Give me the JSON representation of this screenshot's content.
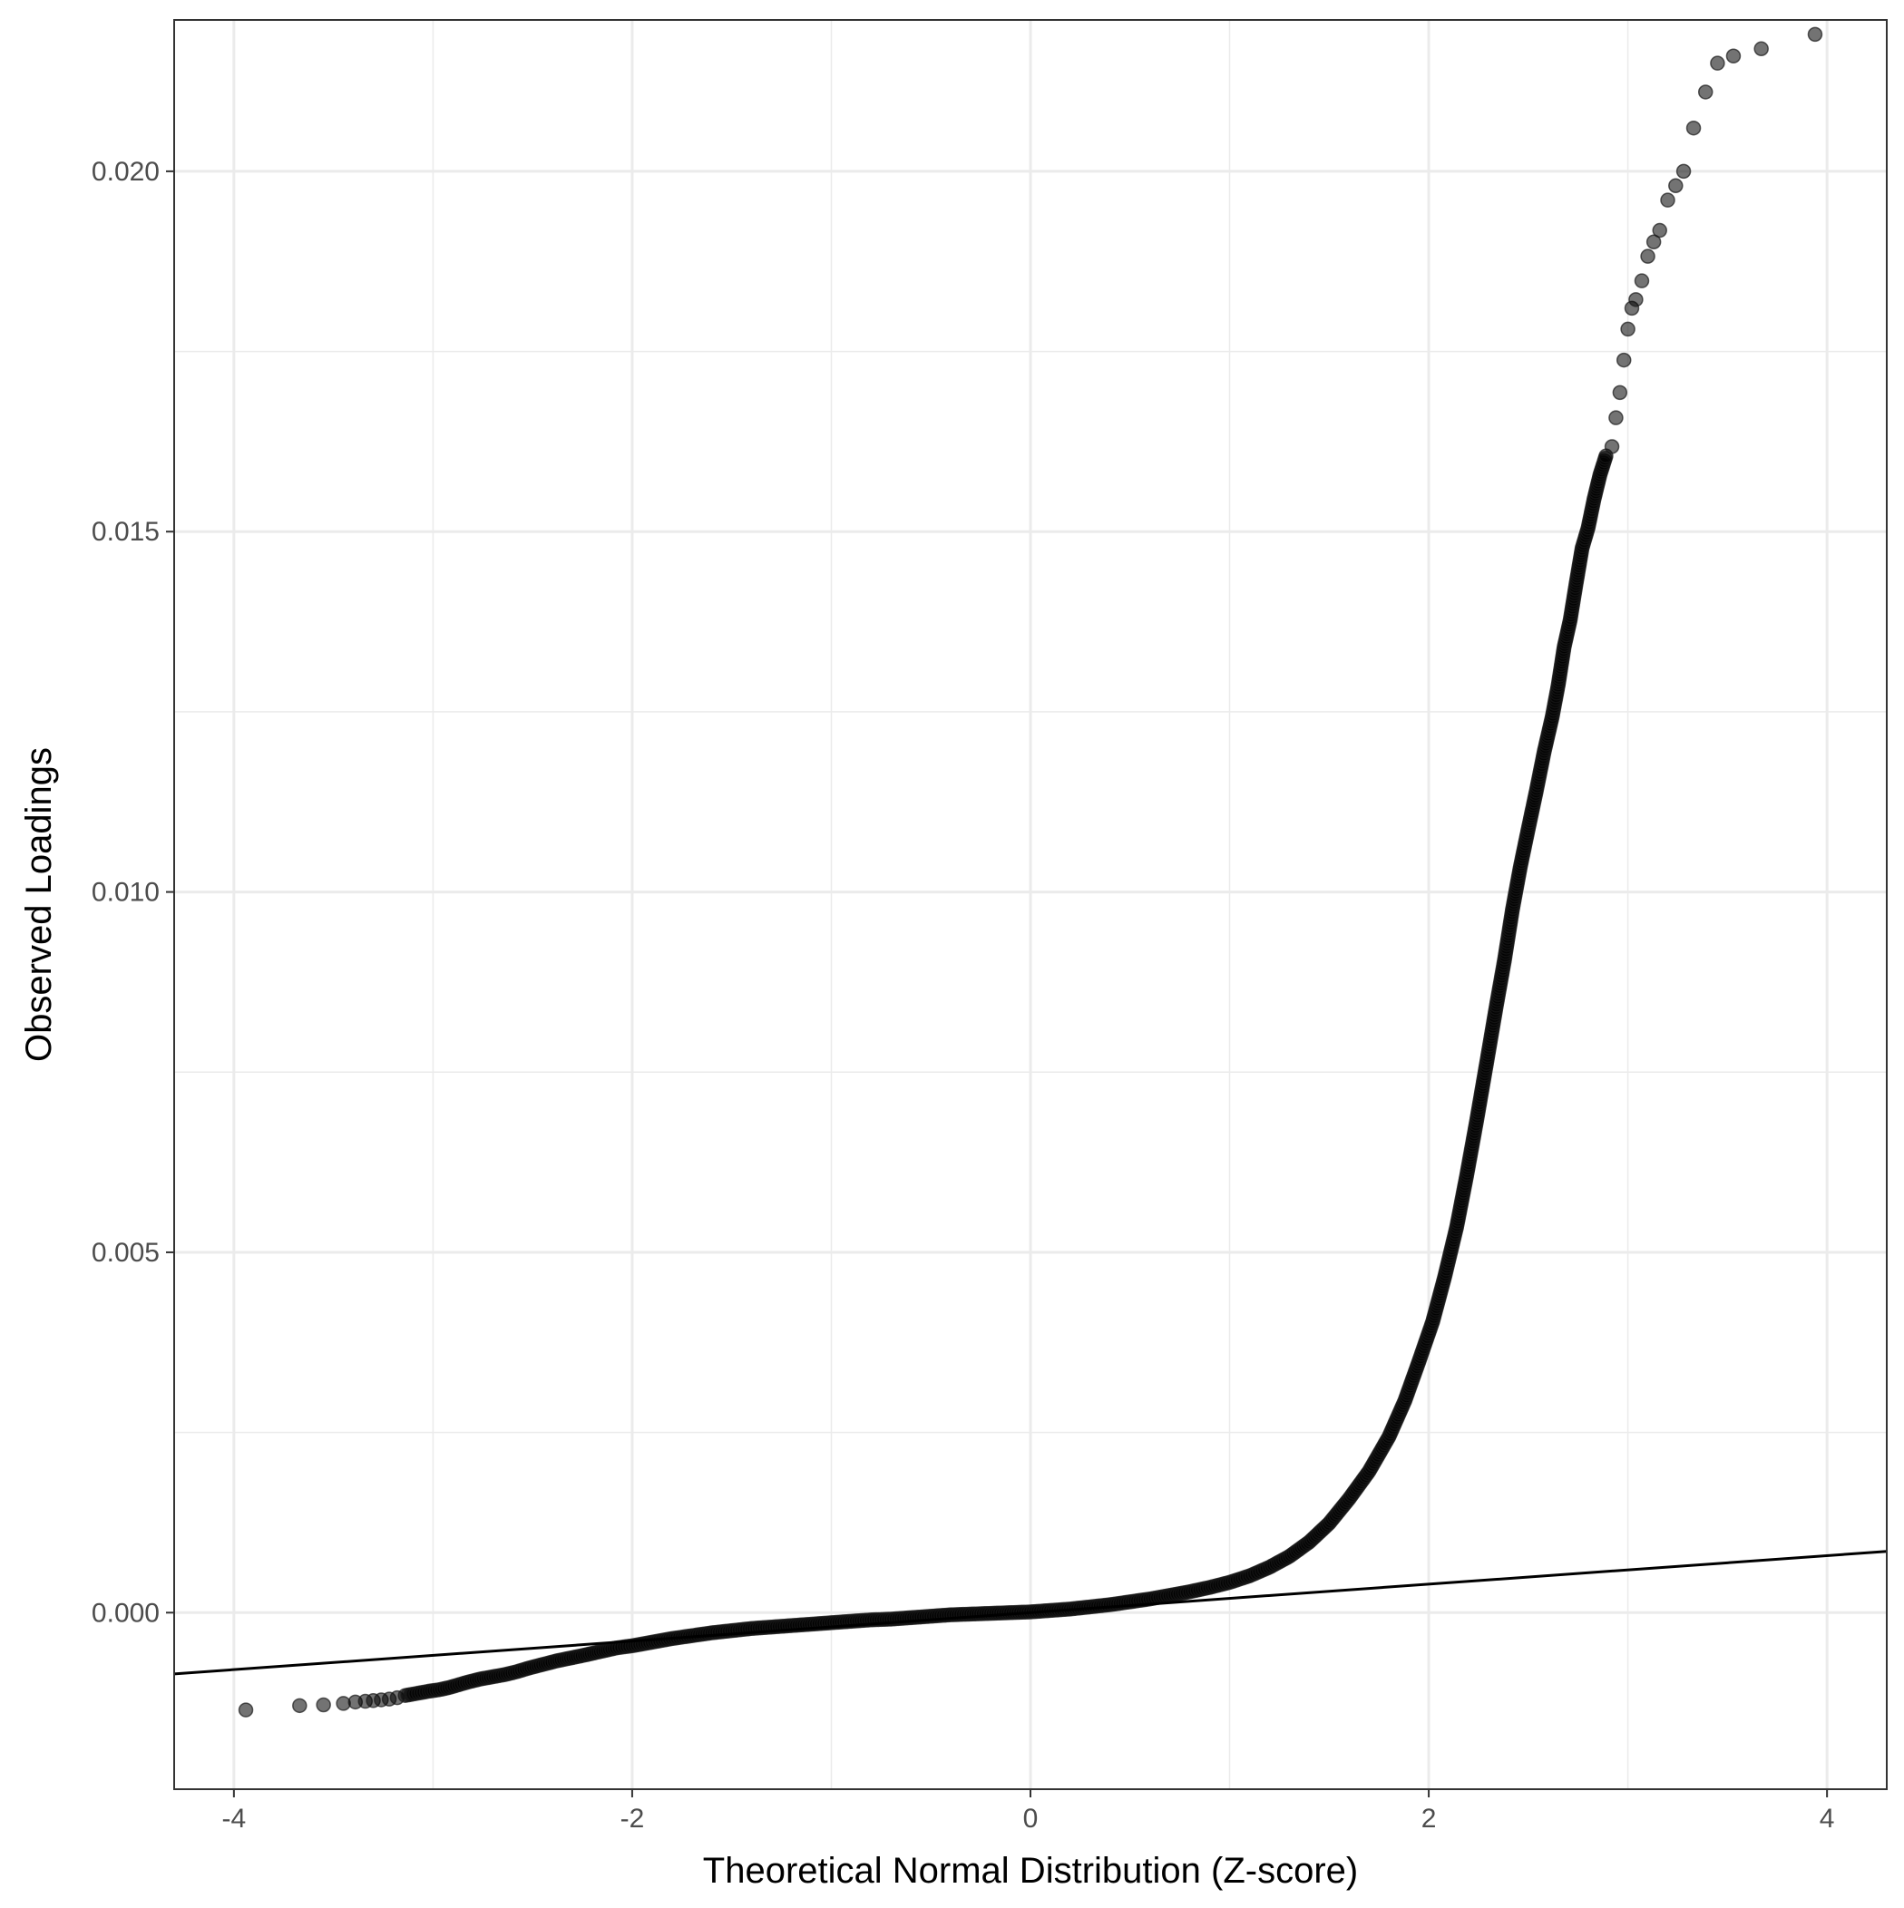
{
  "chart_data": {
    "type": "scatter",
    "title": "",
    "xlabel": "Theoretical Normal Distribution (Z-score)",
    "ylabel": "Observed Loadings",
    "xlim": [
      -4.3,
      4.3
    ],
    "ylim": [
      -0.00245,
      0.0221
    ],
    "x_ticks": [
      -4,
      -2,
      0,
      2,
      4
    ],
    "x_tick_labels": [
      "-4",
      "-2",
      "0",
      "2",
      "4"
    ],
    "y_ticks": [
      0.0,
      0.005,
      0.01,
      0.015,
      0.02
    ],
    "y_tick_labels": [
      "0.000",
      "0.005",
      "0.010",
      "0.015",
      "0.020"
    ],
    "grid": true,
    "legend": "none",
    "colors": {
      "points": "#000000",
      "reference_line": "#000000",
      "grid": "#ebebeb",
      "panel_border": "#333333"
    },
    "reference_line": {
      "x": [
        -4.3,
        4.3
      ],
      "y": [
        -0.00085,
        0.00085
      ]
    },
    "series": [
      {
        "x": [
          -3.94,
          -3.67,
          -3.55,
          -3.45,
          -3.39,
          -3.34,
          -3.3,
          -3.26,
          -3.22,
          -3.18,
          -3.14,
          -3.1,
          -3.06,
          -3.02,
          -2.97,
          -2.92,
          -2.87,
          -2.82,
          -2.76,
          -2.7,
          -2.64,
          -2.58,
          -2.52,
          -2.45,
          -2.38,
          -2.31,
          -2.24,
          -2.16,
          -2.08,
          -2.0,
          -1.9,
          -1.8,
          -1.7,
          -1.6,
          -1.5,
          -1.4,
          -1.3,
          -1.2,
          -1.1,
          -1.0,
          -0.9,
          -0.8,
          -0.7,
          -0.6,
          -0.5,
          -0.4,
          -0.3,
          -0.2,
          -0.1,
          0.0,
          0.1,
          0.2,
          0.3,
          0.4,
          0.5,
          0.6,
          0.7,
          0.8,
          0.9,
          1.0,
          1.1,
          1.2,
          1.3,
          1.4,
          1.5,
          1.6,
          1.7,
          1.8,
          1.88,
          1.95,
          2.02,
          2.08,
          2.14,
          2.19,
          2.24,
          2.29,
          2.34,
          2.38,
          2.42,
          2.46,
          2.5,
          2.54,
          2.58,
          2.62,
          2.65,
          2.68,
          2.71,
          2.74,
          2.77,
          2.8,
          2.83,
          2.86,
          2.89,
          2.92,
          2.94,
          2.96,
          2.98,
          3.0,
          3.02,
          3.04,
          3.07,
          3.1,
          3.13,
          3.16,
          3.2,
          3.24,
          3.28,
          3.33,
          3.39,
          3.45,
          3.53,
          3.67,
          3.94
        ],
        "y": [
          -0.00135,
          -0.00129,
          -0.00128,
          -0.00126,
          -0.00124,
          -0.00123,
          -0.00122,
          -0.00121,
          -0.0012,
          -0.00118,
          -0.00115,
          -0.00113,
          -0.00111,
          -0.00109,
          -0.00107,
          -0.00104,
          -0.001,
          -0.00096,
          -0.00092,
          -0.00089,
          -0.00086,
          -0.00082,
          -0.00077,
          -0.00072,
          -0.00067,
          -0.00063,
          -0.00059,
          -0.00054,
          -0.00049,
          -0.00046,
          -0.00041,
          -0.00036,
          -0.00032,
          -0.00028,
          -0.00025,
          -0.00022,
          -0.0002,
          -0.00018,
          -0.00016,
          -0.00014,
          -0.00012,
          -0.0001,
          -9e-05,
          -7e-05,
          -5e-05,
          -3e-05,
          -2e-05,
          -1e-05,
          0.0,
          1e-05,
          3e-05,
          5e-05,
          8e-05,
          0.00011,
          0.00015,
          0.00019,
          0.00024,
          0.00029,
          0.00035,
          0.00042,
          0.00051,
          0.00063,
          0.00078,
          0.00098,
          0.00124,
          0.00158,
          0.00196,
          0.00244,
          0.00294,
          0.00348,
          0.00404,
          0.00466,
          0.00535,
          0.00606,
          0.00682,
          0.00762,
          0.00843,
          0.00905,
          0.00975,
          0.01035,
          0.01088,
          0.0114,
          0.01195,
          0.01243,
          0.01287,
          0.0134,
          0.01377,
          0.01428,
          0.01477,
          0.01505,
          0.01545,
          0.01579,
          0.01605,
          0.01618,
          0.01658,
          0.01693,
          0.01738,
          0.01781,
          0.0181,
          0.01822,
          0.01848,
          0.01882,
          0.01902,
          0.01918,
          0.0196,
          0.0198,
          0.02,
          0.0206,
          0.0211,
          0.0215,
          0.0216,
          0.0217,
          0.0219
        ]
      }
    ]
  }
}
